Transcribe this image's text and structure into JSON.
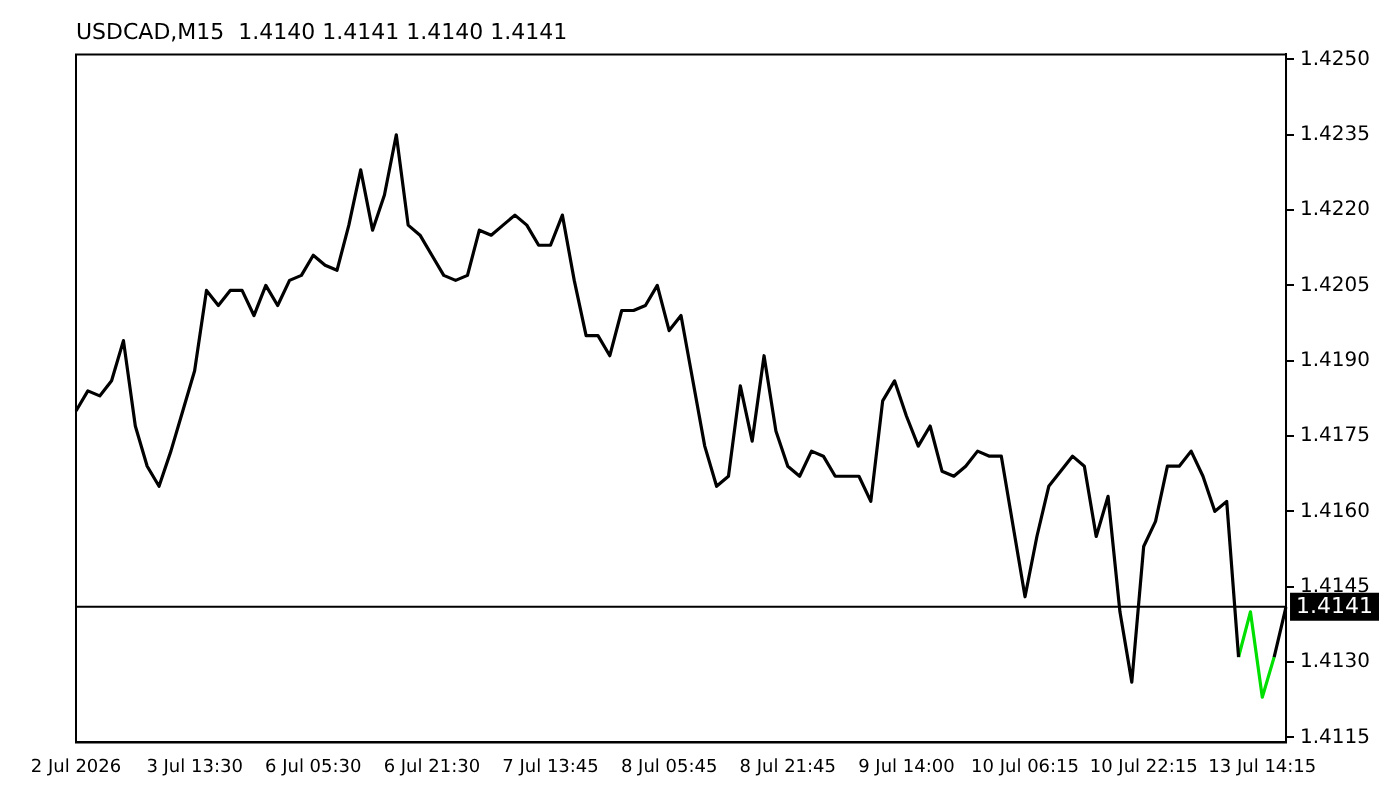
{
  "chart_data": {
    "type": "line",
    "title": "USDCAD,M15  1.4140 1.4141 1.4140 1.4141",
    "categories": [
      "2 Jul 2026",
      null,
      null,
      null,
      null,
      null,
      null,
      null,
      null,
      null,
      "3 Jul 13:30",
      null,
      null,
      null,
      null,
      null,
      null,
      null,
      null,
      null,
      "6 Jul 05:30",
      null,
      null,
      null,
      null,
      null,
      null,
      null,
      null,
      null,
      "6 Jul 21:30",
      null,
      null,
      null,
      null,
      null,
      null,
      null,
      null,
      null,
      "7 Jul 13:45",
      null,
      null,
      null,
      null,
      null,
      null,
      null,
      null,
      null,
      "8 Jul 05:45",
      null,
      null,
      null,
      null,
      null,
      null,
      null,
      null,
      null,
      "8 Jul 21:45",
      null,
      null,
      null,
      null,
      null,
      null,
      null,
      null,
      null,
      "9 Jul 14:00",
      null,
      null,
      null,
      null,
      null,
      null,
      null,
      null,
      null,
      "10 Jul 06:15",
      null,
      null,
      null,
      null,
      null,
      null,
      null,
      null,
      null,
      "10 Jul 22:15",
      null,
      null,
      null,
      null,
      null,
      null,
      null,
      null,
      null,
      "13 Jul 14:15",
      null,
      null
    ],
    "series": [
      {
        "color": "#000000",
        "values": [
          1.418,
          1.4184,
          1.4183,
          1.4186,
          1.4194,
          1.4177,
          1.4169,
          1.4165,
          1.4172,
          1.418,
          1.4188,
          1.4204,
          1.4201,
          1.4204,
          1.4204,
          1.4199,
          1.4205,
          1.4201,
          1.4206,
          1.4207,
          1.4211,
          1.4209,
          1.4208,
          1.4217,
          1.4228,
          1.4216,
          1.4223,
          1.4235,
          1.4217,
          1.4215,
          1.4211,
          1.4207,
          1.4206,
          1.4207,
          1.4216,
          1.4215,
          1.4217,
          1.4219,
          1.4217,
          1.4213,
          1.4213,
          1.4219,
          1.4206,
          1.4195,
          1.4195,
          1.4191,
          1.42,
          1.42,
          1.4201,
          1.4205,
          1.4196,
          1.4199,
          1.4186,
          1.4173,
          1.4165,
          1.4167,
          1.4185,
          1.4174,
          1.4191,
          1.4176,
          1.4169,
          1.4167,
          1.4172,
          1.4171,
          1.4167,
          1.4167,
          1.4167,
          1.4162,
          1.4182,
          1.4186,
          1.4179,
          1.4173,
          1.4177,
          1.4168,
          1.4167,
          1.4169,
          1.4172,
          1.4171,
          1.4171,
          1.4157,
          1.4143,
          1.4155,
          1.4165,
          1.4168,
          1.4171,
          1.4169,
          1.4155,
          1.4163,
          1.414,
          1.4126,
          1.4153,
          1.4158,
          1.4169,
          1.4169,
          1.4172,
          1.4167,
          1.416,
          1.4162,
          1.4131,
          null,
          null,
          1.4131,
          1.4141
        ]
      },
      {
        "color": "#00e000",
        "values": [
          null,
          null,
          null,
          null,
          null,
          null,
          null,
          null,
          null,
          null,
          null,
          null,
          null,
          null,
          null,
          null,
          null,
          null,
          null,
          null,
          null,
          null,
          null,
          null,
          null,
          null,
          null,
          null,
          null,
          null,
          null,
          null,
          null,
          null,
          null,
          null,
          null,
          null,
          null,
          null,
          null,
          null,
          null,
          null,
          null,
          null,
          null,
          null,
          null,
          null,
          null,
          null,
          null,
          null,
          null,
          null,
          null,
          null,
          null,
          null,
          null,
          null,
          null,
          null,
          null,
          null,
          null,
          null,
          null,
          null,
          null,
          null,
          null,
          null,
          null,
          null,
          null,
          null,
          null,
          null,
          null,
          null,
          null,
          null,
          null,
          null,
          null,
          null,
          null,
          null,
          null,
          null,
          null,
          null,
          null,
          null,
          null,
          null,
          1.4131,
          1.414,
          1.4123,
          1.4131,
          null
        ]
      }
    ],
    "ylim": [
      1.4114,
      1.4251
    ],
    "yticks": [
      1.4115,
      {
        "value": 1.413,
        "label": "1.4130"
      },
      1.4145,
      {
        "value": 1.416,
        "label": "1.4160"
      },
      1.4175,
      {
        "value": 1.419,
        "label": "1.4190"
      },
      1.4205,
      {
        "value": 1.422,
        "label": "1.4220"
      },
      1.4235,
      {
        "value": 1.425,
        "label": "1.4250"
      }
    ],
    "ref_lines": [
      {
        "axis": "y",
        "value": 1.4141,
        "label": "1.4141",
        "color": "#000000"
      }
    ],
    "grid": false,
    "legend": false,
    "marker": "none",
    "line_style": "solid"
  }
}
